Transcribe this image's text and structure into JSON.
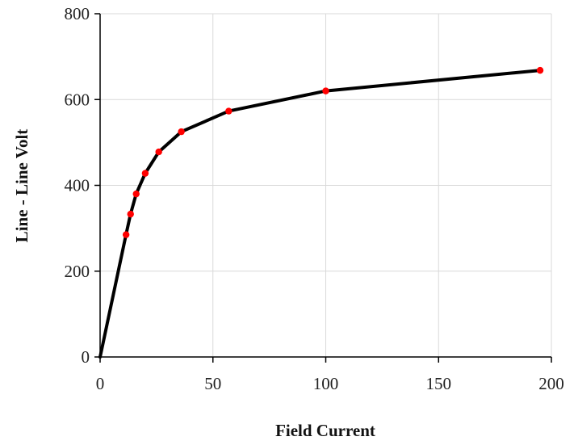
{
  "chart_data": {
    "type": "line",
    "title": "",
    "xlabel": "Field Current",
    "ylabel": "Line - Line Volt",
    "xlim": [
      0,
      200
    ],
    "ylim": [
      0,
      800
    ],
    "x_ticks": [
      0,
      50,
      100,
      150,
      200
    ],
    "y_ticks": [
      0,
      200,
      400,
      600,
      800
    ],
    "x_tick_labels": [
      "0",
      "50",
      "100",
      "150",
      "200"
    ],
    "y_tick_labels": [
      "0",
      "200",
      "400",
      "600",
      "800"
    ],
    "grid": true,
    "legend": "none",
    "series": [
      {
        "x": [
          0,
          11.5,
          13.5,
          16,
          20,
          26,
          36,
          57,
          100,
          195
        ],
        "y": [
          0,
          285,
          333,
          380,
          428,
          478,
          525,
          573,
          620,
          668
        ],
        "line_color": "#000000",
        "marker_color": "#ff0000"
      }
    ]
  }
}
